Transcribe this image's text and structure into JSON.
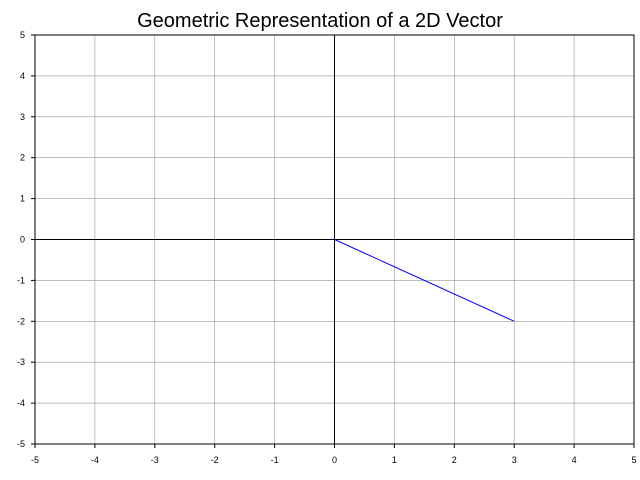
{
  "chart_data": {
    "type": "line",
    "title": "Geometric Representation of a 2D Vector",
    "xlabel": "",
    "ylabel": "",
    "xlim": [
      -5,
      5
    ],
    "ylim": [
      -5,
      5
    ],
    "grid": true,
    "x_ticks": [
      "-5",
      "-4",
      "-3",
      "-2",
      "-1",
      "0",
      "1",
      "2",
      "3",
      "4",
      "5"
    ],
    "y_ticks": [
      "5",
      "4",
      "3",
      "2",
      "1",
      "0",
      "-1",
      "-2",
      "-3",
      "-4",
      "-5"
    ],
    "series": [
      {
        "x": [
          0,
          3
        ],
        "y": [
          0,
          -2
        ],
        "color": "#0000ff"
      }
    ],
    "axis_color": "#000000",
    "grid_color": "#999999"
  }
}
